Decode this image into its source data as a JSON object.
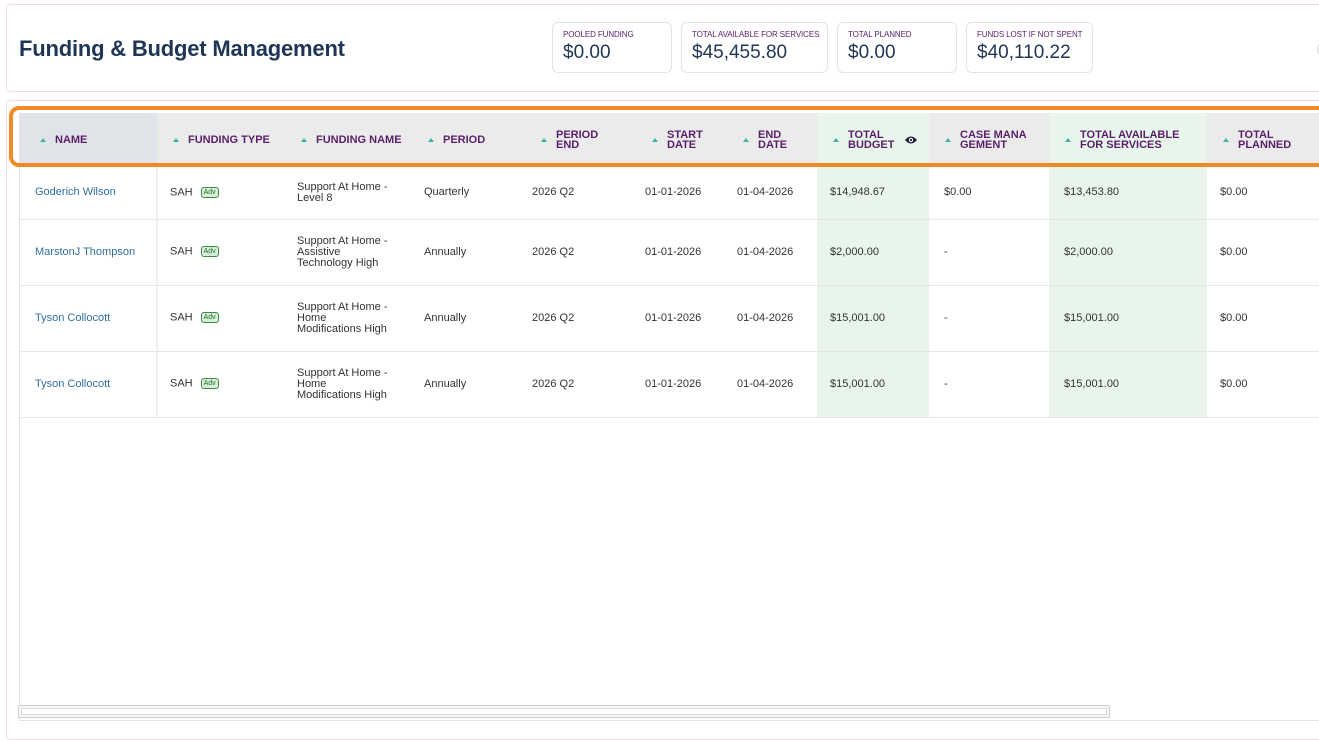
{
  "page": {
    "title": "Funding & Budget Management"
  },
  "stats": [
    {
      "label": "POOLED FUNDING",
      "value": "$0.00"
    },
    {
      "label": "TOTAL AVAILABLE FOR SERVICES",
      "value": "$45,455.80"
    },
    {
      "label": "TOTAL PLANNED",
      "value": "$0.00"
    },
    {
      "label": "FUNDS LOST IF NOT SPENT",
      "value": "$40,110.22"
    }
  ],
  "table": {
    "columns": {
      "name": "NAME",
      "funding_type": "FUNDING TYPE",
      "funding_name": "FUNDING NAME",
      "period": "PERIOD",
      "period_end": "PERIOD END",
      "start_date": "START DATE",
      "end_date": "END DATE",
      "total_budget": "TOTAL BUDGET",
      "case_management": "CASE MANAGEMENT",
      "total_available": "TOTAL AVAILABLE FOR SERVICES",
      "total_planned": "TOTAL PLANNED"
    },
    "rows": [
      {
        "name": "Goderich Wilson",
        "funding_type": "SAH",
        "badge": "Adv",
        "funding_name": "Support At Home - Level 8",
        "period": "Quarterly",
        "period_end": "2026 Q2",
        "start_date": "01-01-2026",
        "end_date": "01-04-2026",
        "total_budget": "$14,948.67",
        "case_management": "$0.00",
        "total_available": "$13,453.80",
        "total_planned": "$0.00"
      },
      {
        "name": "MarstonJ Thompson",
        "funding_type": "SAH",
        "badge": "Adv",
        "funding_name": "Support At Home - Assistive Technology High",
        "period": "Annually",
        "period_end": "2026 Q2",
        "start_date": "01-01-2026",
        "end_date": "01-04-2026",
        "total_budget": "$2,000.00",
        "case_management": "-",
        "total_available": "$2,000.00",
        "total_planned": "$0.00"
      },
      {
        "name": "Tyson Collocott",
        "funding_type": "SAH",
        "badge": "Adv",
        "funding_name": "Support At Home - Home Modifications High",
        "period": "Annually",
        "period_end": "2026 Q2",
        "start_date": "01-01-2026",
        "end_date": "01-04-2026",
        "total_budget": "$15,001.00",
        "case_management": "-",
        "total_available": "$15,001.00",
        "total_planned": "$0.00"
      },
      {
        "name": "Tyson Collocott",
        "funding_type": "SAH",
        "badge": "Adv",
        "funding_name": "Support At Home - Home Modifications High",
        "period": "Annually",
        "period_end": "2026 Q2",
        "start_date": "01-01-2026",
        "end_date": "01-04-2026",
        "total_budget": "$15,001.00",
        "case_management": "-",
        "total_available": "$15,001.00",
        "total_planned": "$0.00"
      }
    ]
  },
  "colors": {
    "title": "#1f3556",
    "header_text": "#5a1f6b",
    "link": "#2f6fa0",
    "money_column_bg": "#e8f5ea",
    "highlight": "#f08a24",
    "sort_icon": "#3cb6a0"
  },
  "icons": {
    "sort": "sort-ascending-icon",
    "visibility": "eye-icon"
  }
}
